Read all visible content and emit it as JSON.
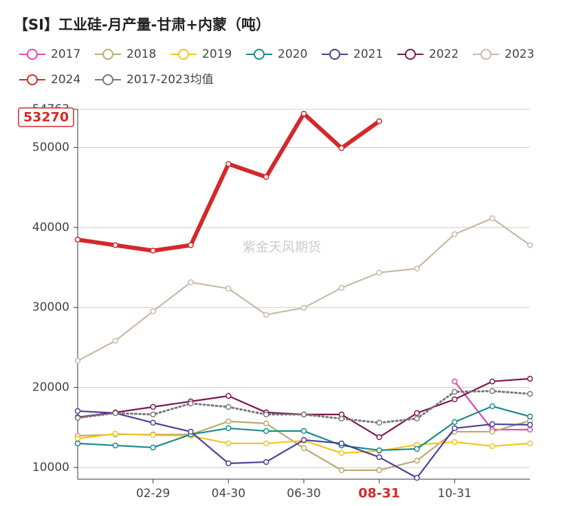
{
  "chart_data": {
    "type": "line",
    "title": "【SI】工业硅-月产量-甘肃+内蒙（吨）",
    "watermark": "紫金天风期货",
    "categories": [
      null,
      null,
      "02-29",
      null,
      "04-30",
      null,
      "06-30",
      null,
      "08-31",
      null,
      "10-31",
      null,
      null
    ],
    "series": [
      {
        "name": "2017",
        "color": "#ec3fb5",
        "values": [
          null,
          null,
          null,
          null,
          null,
          null,
          null,
          null,
          null,
          null,
          20753,
          14731,
          14731
        ]
      },
      {
        "name": "2018",
        "color": "#b9aa6e",
        "values": [
          13957,
          14129,
          14129,
          14129,
          15763,
          15505,
          12409,
          9656,
          9656,
          10860,
          14473,
          14473,
          15849
        ]
      },
      {
        "name": "2019",
        "color": "#f4c51c",
        "values": [
          13613,
          14215,
          14043,
          13957,
          13011,
          13011,
          13355,
          11806,
          12065,
          12839,
          13183,
          12667,
          13011
        ]
      },
      {
        "name": "2020",
        "color": "#17898a",
        "values": [
          13011,
          12753,
          12495,
          14129,
          14903,
          14559,
          14559,
          12753,
          12151,
          12323,
          15677,
          17656,
          16366
        ]
      },
      {
        "name": "2021",
        "color": "#4a3f98",
        "values": [
          17054,
          16796,
          15591,
          14473,
          10516,
          10688,
          13441,
          13011,
          11290,
          8710,
          14903,
          15419,
          15333
        ]
      },
      {
        "name": "2022",
        "color": "#7c1550",
        "values": [
          16280,
          16882,
          17570,
          18258,
          18946,
          16882,
          16624,
          16624,
          13785,
          16796,
          18516,
          20753,
          21097
        ]
      },
      {
        "name": "2023",
        "color": "#c9b9a4",
        "values": [
          23333,
          25828,
          29527,
          33140,
          32366,
          29097,
          29957,
          32452,
          34344,
          34860,
          39161,
          41140,
          37785
        ]
      },
      {
        "name": "2024",
        "color": "#d4282a",
        "values": [
          38473,
          37785,
          37097,
          37785,
          47935,
          46301,
          54215,
          49914,
          53270,
          null,
          null,
          null,
          null
        ]
      },
      {
        "name": "2017-2023均值",
        "color": "#777777",
        "dashed": true,
        "values": [
          16194,
          16796,
          16624,
          18000,
          17570,
          16624,
          16624,
          16108,
          15591,
          16108,
          19462,
          19548,
          19204
        ]
      }
    ],
    "highlight_index": 8,
    "ylim": [
      8538,
      54763
    ],
    "yticks": [
      10000,
      20000,
      30000,
      40000,
      50000,
      54763
    ],
    "grid": true
  }
}
